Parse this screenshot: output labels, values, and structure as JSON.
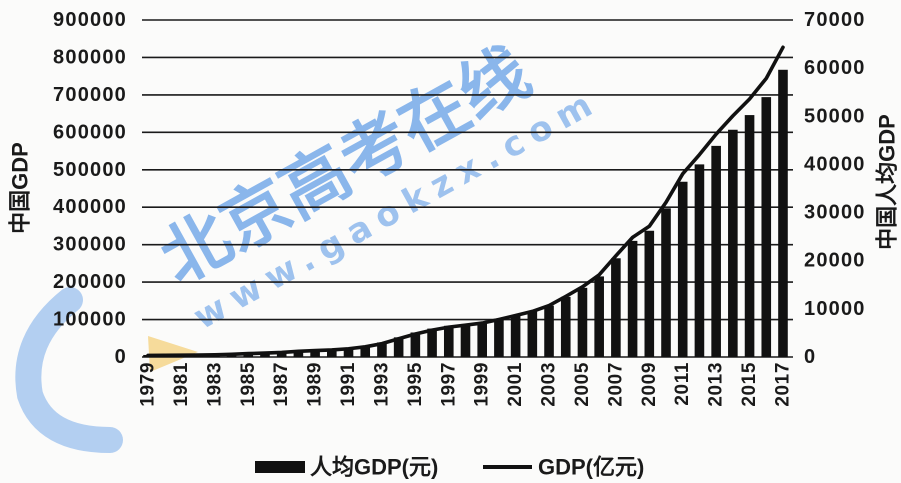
{
  "chart_data": {
    "type": "bar",
    "x": [
      1979,
      1980,
      1981,
      1982,
      1983,
      1984,
      1985,
      1986,
      1987,
      1988,
      1989,
      1990,
      1991,
      1992,
      1993,
      1994,
      1995,
      1996,
      1997,
      1998,
      1999,
      2000,
      2001,
      2002,
      2003,
      2004,
      2005,
      2006,
      2007,
      2008,
      2009,
      2010,
      2011,
      2012,
      2013,
      2014,
      2015,
      2016,
      2017
    ],
    "x_tick_labels": [
      "1979",
      "1981",
      "1983",
      "1985",
      "1987",
      "1989",
      "1991",
      "1993",
      "1995",
      "1997",
      "1999",
      "2001",
      "2003",
      "2005",
      "2007",
      "2009",
      "2011",
      "2013",
      "2015",
      "2017"
    ],
    "series": [
      {
        "name": "人均GDP(元)",
        "type": "bar",
        "axis": "right",
        "values": [
          423,
          468,
          497,
          533,
          588,
          702,
          866,
          973,
          1123,
          1378,
          1536,
          1663,
          1912,
          2334,
          3027,
          4081,
          5091,
          5898,
          6481,
          6860,
          7229,
          7942,
          8717,
          9506,
          10666,
          12487,
          14368,
          16738,
          20505,
          24121,
          26222,
          30876,
          36403,
          40007,
          43852,
          47203,
          50251,
          53980,
          59660
        ]
      },
      {
        "name": "GDP(亿元)",
        "type": "line",
        "axis": "left",
        "values": [
          4100,
          4588,
          4936,
          5373,
          6021,
          7279,
          9099,
          10376,
          12175,
          15180,
          17180,
          18873,
          22006,
          27195,
          35673,
          48638,
          61340,
          71814,
          79715,
          85196,
          90564,
          100280,
          110863,
          121717,
          137422,
          161840,
          187319,
          219439,
          270232,
          319516,
          349081,
          413030,
          489301,
          540367,
          595244,
          643974,
          689052,
          744127,
          827122
        ]
      }
    ],
    "ylabel": "中国GDP",
    "y2label": "中国人均GDP",
    "ylim": [
      0,
      900000
    ],
    "y2lim": [
      0,
      70000
    ],
    "y_ticks": [
      "0",
      "100000",
      "200000",
      "300000",
      "400000",
      "500000",
      "600000",
      "700000",
      "800000",
      "900000"
    ],
    "y2_ticks": [
      "0",
      "10000",
      "20000",
      "30000",
      "40000",
      "50000",
      "60000",
      "70000"
    ],
    "grid": true,
    "legend": "bottom",
    "colors": {
      "bar": "#111111",
      "line": "#111111",
      "grid": "#1a1a1a"
    }
  },
  "watermark": {
    "text": "北京高考在线",
    "url": "www.gaokzx.com",
    "color": "#2f7fe0"
  }
}
